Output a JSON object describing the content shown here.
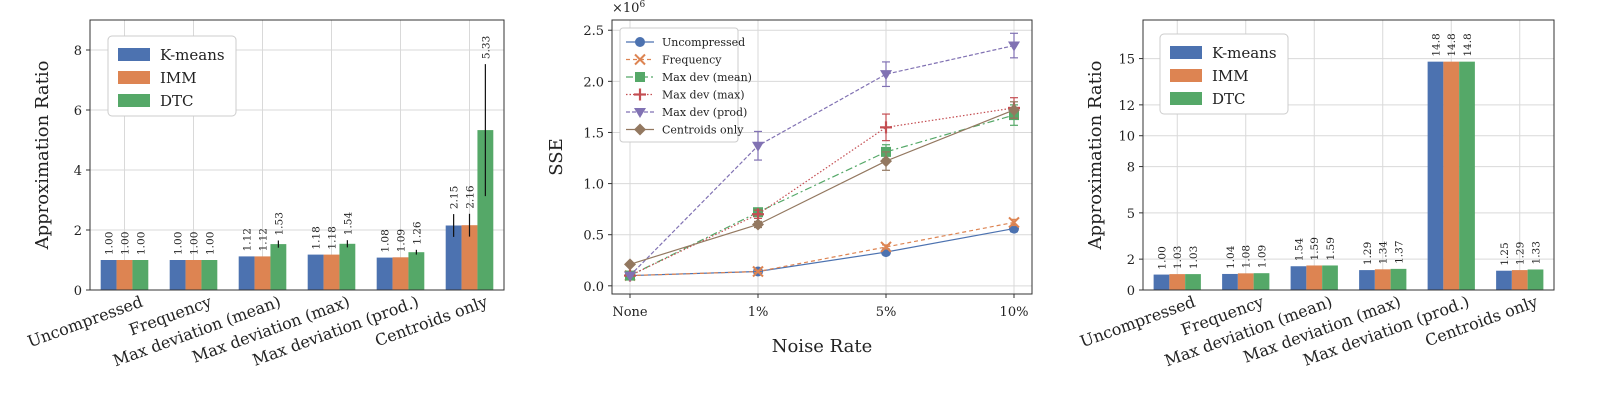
{
  "colors": {
    "kmeans": "#4c72b0",
    "imm": "#dd8452",
    "dtc": "#55a868",
    "grid": "#d9d9d9"
  },
  "chart_data": [
    {
      "type": "bar",
      "ylabel": "Approximation Ratio",
      "ylim": [
        0,
        9
      ],
      "yticks": [
        0,
        2,
        4,
        6,
        8
      ],
      "legend_position": "upper-left",
      "grid": true,
      "categories": [
        "Uncompressed",
        "Frequency",
        "Max deviation (mean)",
        "Max deviation (max)",
        "Max deviation (prod.)",
        "Centroids only"
      ],
      "series": [
        {
          "name": "K-means",
          "values": [
            1.0,
            1.0,
            1.12,
            1.18,
            1.08,
            2.15
          ],
          "labels": [
            "1.00",
            "1.00",
            "1.12",
            "1.18",
            "1.08",
            "2.15"
          ],
          "err": [
            0,
            0,
            0,
            0,
            0,
            0.38
          ]
        },
        {
          "name": "IMM",
          "values": [
            1.0,
            1.0,
            1.12,
            1.18,
            1.09,
            2.16
          ],
          "labels": [
            "1.00",
            "1.00",
            "1.12",
            "1.18",
            "1.09",
            "2.16"
          ],
          "err": [
            0,
            0,
            0,
            0,
            0,
            0.38
          ]
        },
        {
          "name": "DTC",
          "values": [
            1.0,
            1.0,
            1.53,
            1.54,
            1.26,
            5.33
          ],
          "labels": [
            "1.00",
            "1.00",
            "1.53",
            "1.54",
            "1.26",
            "5.33"
          ],
          "err": [
            0,
            0,
            0.12,
            0.12,
            0.08,
            2.2
          ]
        }
      ]
    },
    {
      "type": "line",
      "xlabel": "Noise Rate",
      "ylabel": "SSE",
      "multiplier": "×10",
      "multiplier_exp": "6",
      "ylim": [
        -0.08,
        2.6
      ],
      "yticks": [
        0.0,
        0.5,
        1.0,
        1.5,
        2.0,
        2.5
      ],
      "ytick_labels": [
        "0.0",
        "0.5",
        "1.0",
        "1.5",
        "2.0",
        "2.5"
      ],
      "categories": [
        "None",
        "1%",
        "5%",
        "10%"
      ],
      "legend_position": "upper-left",
      "grid": true,
      "series": [
        {
          "name": "Uncompressed",
          "color": "#4c72b0",
          "marker": "circle",
          "dash": "",
          "values": [
            0.1,
            0.14,
            0.33,
            0.56
          ],
          "err": [
            0,
            0.01,
            0.02,
            0.03
          ]
        },
        {
          "name": "Frequency",
          "color": "#dd8452",
          "marker": "x",
          "dash": "4,3",
          "values": [
            0.1,
            0.14,
            0.38,
            0.62
          ],
          "err": [
            0,
            0.01,
            0.02,
            0.03
          ]
        },
        {
          "name": "Max dev (mean)",
          "color": "#55a868",
          "marker": "square",
          "dash": "7,3,2,3",
          "values": [
            0.1,
            0.72,
            1.31,
            1.67
          ],
          "err": [
            0,
            0.04,
            0.07,
            0.1
          ]
        },
        {
          "name": "Max dev (max)",
          "color": "#c44e52",
          "marker": "plus",
          "dash": "1.5,2",
          "values": [
            0.1,
            0.7,
            1.55,
            1.74
          ],
          "err": [
            0,
            0.04,
            0.13,
            0.1
          ]
        },
        {
          "name": "Max dev (prod)",
          "color": "#8172b3",
          "marker": "triangle-down",
          "dash": "4,2",
          "values": [
            0.1,
            1.37,
            2.07,
            2.35
          ],
          "err": [
            0,
            0.14,
            0.12,
            0.12
          ]
        },
        {
          "name": "Centroids only",
          "color": "#937860",
          "marker": "diamond",
          "dash": "",
          "values": [
            0.21,
            0.6,
            1.22,
            1.72
          ],
          "err": [
            0,
            0.03,
            0.09,
            0.08
          ]
        }
      ]
    },
    {
      "type": "bar",
      "ylabel": "Approximation Ratio",
      "ylim": [
        0,
        17.5
      ],
      "yticks": [
        0,
        2,
        5,
        8,
        10,
        12,
        15
      ],
      "ytick_labels": [
        "0",
        "2",
        "5",
        "8",
        "10",
        "12",
        "15"
      ],
      "legend_position": "upper-left",
      "grid": true,
      "categories": [
        "Uncompressed",
        "Frequency",
        "Max deviation (mean)",
        "Max deviation (max)",
        "Max deviation (prod.)",
        "Centroids only"
      ],
      "series": [
        {
          "name": "K-means",
          "values": [
            1.0,
            1.04,
            1.54,
            1.29,
            14.8,
            1.25
          ],
          "labels": [
            "1.00",
            "1.04",
            "1.54",
            "1.29",
            "14.8",
            "1.25"
          ]
        },
        {
          "name": "IMM",
          "values": [
            1.03,
            1.08,
            1.59,
            1.34,
            14.8,
            1.29
          ],
          "labels": [
            "1.03",
            "1.08",
            "1.59",
            "1.34",
            "14.8",
            "1.29"
          ]
        },
        {
          "name": "DTC",
          "values": [
            1.03,
            1.09,
            1.59,
            1.37,
            14.8,
            1.33
          ],
          "labels": [
            "1.03",
            "1.09",
            "1.59",
            "1.37",
            "14.8",
            "1.33"
          ]
        }
      ]
    }
  ]
}
